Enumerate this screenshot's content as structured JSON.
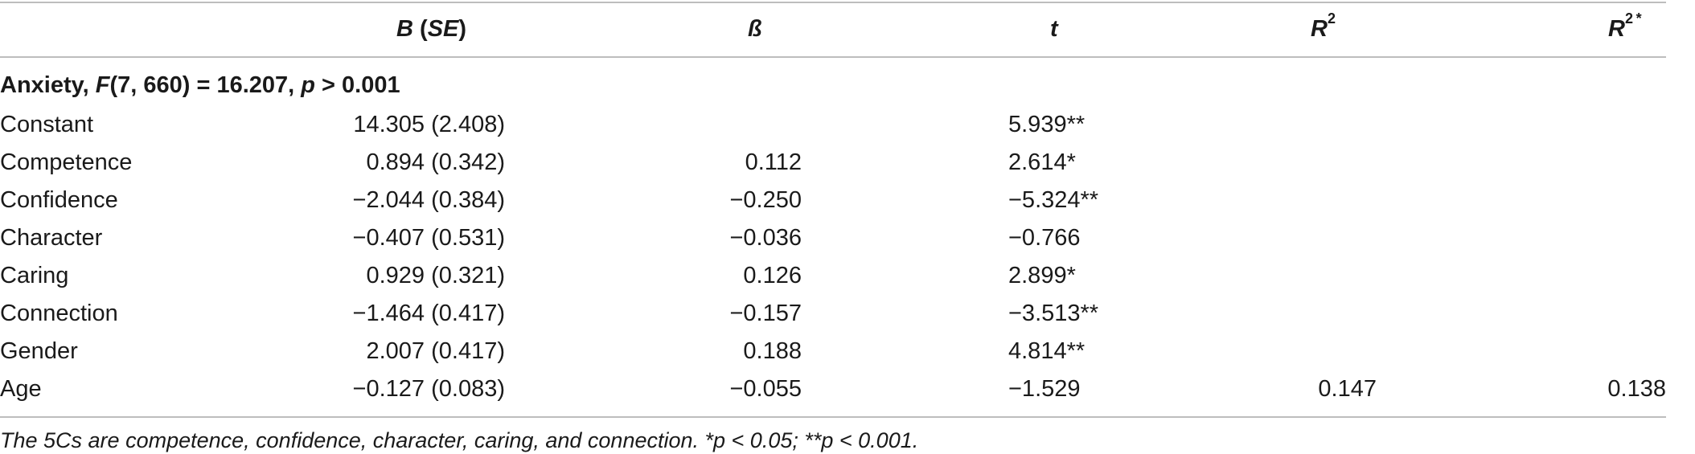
{
  "headers": {
    "b": "B",
    "se": "SE",
    "beta": "ß",
    "t": "t",
    "r2": "R",
    "r2_sup": "2",
    "r2a": "R",
    "r2a_sup": "2 *"
  },
  "section": {
    "name": "Anxiety,",
    "f_label": "F",
    "f_args": "(7, 660) = 16.207,",
    "p_label": "p",
    "p_value": "> 0.001"
  },
  "rows": [
    {
      "label": "Constant",
      "b": "14.305 (2.408)",
      "beta": "",
      "t": "5.939**",
      "r2": "",
      "r2a": ""
    },
    {
      "label": "Competence",
      "b": "0.894 (0.342)",
      "beta": "0.112",
      "t": "2.614*",
      "r2": "",
      "r2a": ""
    },
    {
      "label": "Confidence",
      "b": "−2.044 (0.384)",
      "beta": "−0.250",
      "t": "−5.324**",
      "r2": "",
      "r2a": ""
    },
    {
      "label": "Character",
      "b": "−0.407 (0.531)",
      "beta": "−0.036",
      "t": "−0.766",
      "r2": "",
      "r2a": ""
    },
    {
      "label": "Caring",
      "b": "0.929 (0.321)",
      "beta": "0.126",
      "t": "2.899*",
      "r2": "",
      "r2a": ""
    },
    {
      "label": "Connection",
      "b": "−1.464 (0.417)",
      "beta": "−0.157",
      "t": "−3.513**",
      "r2": "",
      "r2a": ""
    },
    {
      "label": "Gender",
      "b": "2.007 (0.417)",
      "beta": "0.188",
      "t": "4.814**",
      "r2": "",
      "r2a": ""
    },
    {
      "label": "Age",
      "b": "−0.127 (0.083)",
      "beta": "−0.055",
      "t": "−1.529",
      "r2": "0.147",
      "r2a": "0.138"
    }
  ],
  "footnote": "The 5Cs are competence, confidence, character, caring, and connection. *p < 0.05; **p < 0.001."
}
